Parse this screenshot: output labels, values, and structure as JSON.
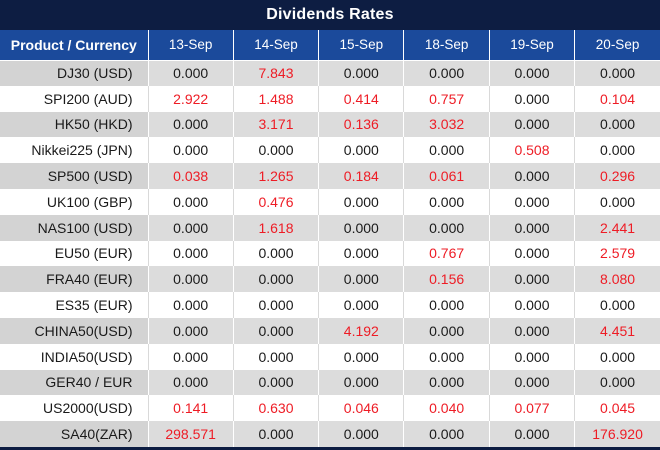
{
  "title": "Dividends Rates",
  "colors": {
    "navy": "#0d1d42",
    "header_blue": "#1b4a9b",
    "row_gray": "#dcdcdc",
    "label_gray": "#d3d3d3",
    "red": "#ee1c25",
    "black": "#1a1a1a"
  },
  "table": {
    "label_header": "Product / Currency",
    "date_headers": [
      "13-Sep",
      "14-Sep",
      "15-Sep",
      "18-Sep",
      "19-Sep",
      "20-Sep"
    ],
    "rows": [
      {
        "product": "DJ30 (USD)",
        "values": [
          "0.000",
          "7.843",
          "0.000",
          "0.000",
          "0.000",
          "0.000"
        ]
      },
      {
        "product": "SPI200 (AUD)",
        "values": [
          "2.922",
          "1.488",
          "0.414",
          "0.757",
          "0.000",
          "0.104"
        ]
      },
      {
        "product": "HK50 (HKD)",
        "values": [
          "0.000",
          "3.171",
          "0.136",
          "3.032",
          "0.000",
          "0.000"
        ]
      },
      {
        "product": "Nikkei225 (JPN)",
        "values": [
          "0.000",
          "0.000",
          "0.000",
          "0.000",
          "0.508",
          "0.000"
        ]
      },
      {
        "product": "SP500 (USD)",
        "values": [
          "0.038",
          "1.265",
          "0.184",
          "0.061",
          "0.000",
          "0.296"
        ]
      },
      {
        "product": "UK100 (GBP)",
        "values": [
          "0.000",
          "0.476",
          "0.000",
          "0.000",
          "0.000",
          "0.000"
        ]
      },
      {
        "product": "NAS100 (USD)",
        "values": [
          "0.000",
          "1.618",
          "0.000",
          "0.000",
          "0.000",
          "2.441"
        ]
      },
      {
        "product": "EU50 (EUR)",
        "values": [
          "0.000",
          "0.000",
          "0.000",
          "0.767",
          "0.000",
          "2.579"
        ]
      },
      {
        "product": "FRA40 (EUR)",
        "values": [
          "0.000",
          "0.000",
          "0.000",
          "0.156",
          "0.000",
          "8.080"
        ]
      },
      {
        "product": "ES35 (EUR)",
        "values": [
          "0.000",
          "0.000",
          "0.000",
          "0.000",
          "0.000",
          "0.000"
        ]
      },
      {
        "product": "CHINA50(USD)",
        "values": [
          "0.000",
          "0.000",
          "4.192",
          "0.000",
          "0.000",
          "4.451"
        ]
      },
      {
        "product": "INDIA50(USD)",
        "values": [
          "0.000",
          "0.000",
          "0.000",
          "0.000",
          "0.000",
          "0.000"
        ]
      },
      {
        "product": "GER40 / EUR",
        "values": [
          "0.000",
          "0.000",
          "0.000",
          "0.000",
          "0.000",
          "0.000"
        ]
      },
      {
        "product": "US2000(USD)",
        "values": [
          "0.141",
          "0.630",
          "0.046",
          "0.040",
          "0.077",
          "0.045"
        ]
      },
      {
        "product": "SA40(ZAR)",
        "values": [
          "298.571",
          "0.000",
          "0.000",
          "0.000",
          "0.000",
          "176.920"
        ]
      }
    ]
  },
  "chart_data": {
    "type": "table",
    "title": "Dividends Rates",
    "row_header_label": "Product / Currency",
    "columns": [
      "13-Sep",
      "14-Sep",
      "15-Sep",
      "18-Sep",
      "19-Sep",
      "20-Sep"
    ],
    "row_labels": [
      "DJ30 (USD)",
      "SPI200 (AUD)",
      "HK50 (HKD)",
      "Nikkei225 (JPN)",
      "SP500 (USD)",
      "UK100 (GBP)",
      "NAS100 (USD)",
      "EU50 (EUR)",
      "FRA40 (EUR)",
      "ES35 (EUR)",
      "CHINA50(USD)",
      "INDIA50(USD)",
      "GER40 / EUR",
      "US2000(USD)",
      "SA40(ZAR)"
    ],
    "values": [
      [
        0.0,
        7.843,
        0.0,
        0.0,
        0.0,
        0.0
      ],
      [
        2.922,
        1.488,
        0.414,
        0.757,
        0.0,
        0.104
      ],
      [
        0.0,
        3.171,
        0.136,
        3.032,
        0.0,
        0.0
      ],
      [
        0.0,
        0.0,
        0.0,
        0.0,
        0.508,
        0.0
      ],
      [
        0.038,
        1.265,
        0.184,
        0.061,
        0.0,
        0.296
      ],
      [
        0.0,
        0.476,
        0.0,
        0.0,
        0.0,
        0.0
      ],
      [
        0.0,
        1.618,
        0.0,
        0.0,
        0.0,
        2.441
      ],
      [
        0.0,
        0.0,
        0.0,
        0.767,
        0.0,
        2.579
      ],
      [
        0.0,
        0.0,
        0.0,
        0.156,
        0.0,
        8.08
      ],
      [
        0.0,
        0.0,
        0.0,
        0.0,
        0.0,
        0.0
      ],
      [
        0.0,
        0.0,
        4.192,
        0.0,
        0.0,
        4.451
      ],
      [
        0.0,
        0.0,
        0.0,
        0.0,
        0.0,
        0.0
      ],
      [
        0.0,
        0.0,
        0.0,
        0.0,
        0.0,
        0.0
      ],
      [
        0.141,
        0.63,
        0.046,
        0.04,
        0.077,
        0.045
      ],
      [
        298.571,
        0.0,
        0.0,
        0.0,
        0.0,
        176.92
      ]
    ],
    "style_note": "non-zero values rendered red, zeros black; rows striped gray/white starting gray"
  }
}
